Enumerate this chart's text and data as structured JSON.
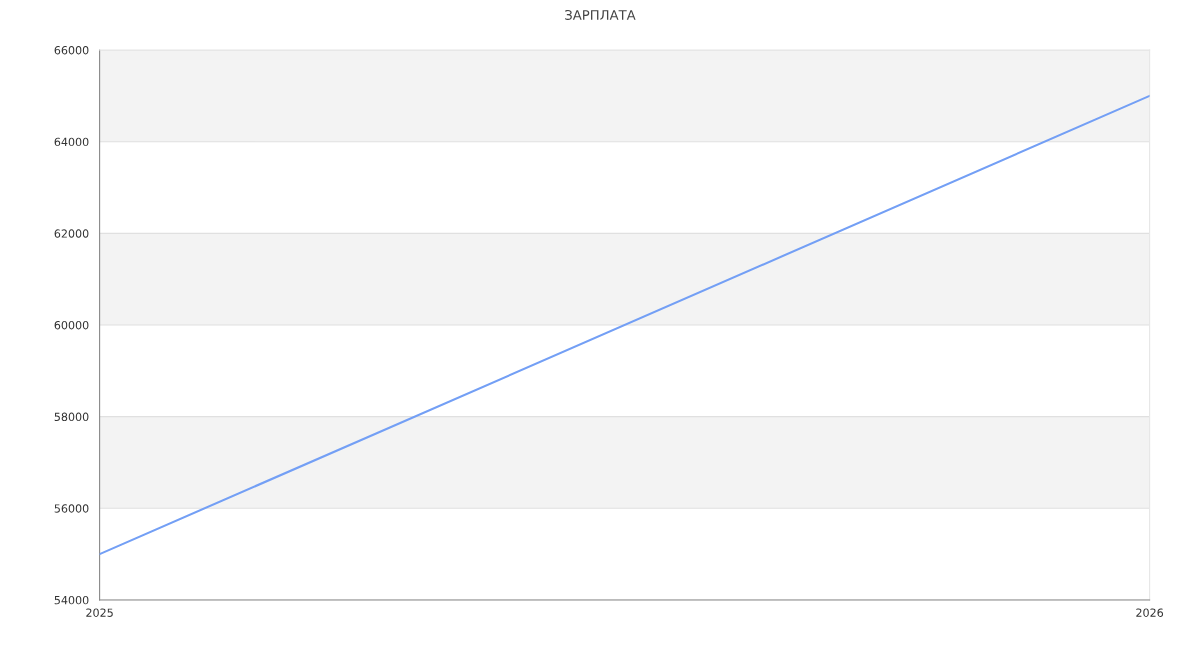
{
  "chart_data": {
    "type": "line",
    "title": "ЗАРПЛАТА",
    "x": [
      2025,
      2026
    ],
    "series": [
      {
        "color": "#739ff5",
        "values": [
          55000,
          65000
        ]
      }
    ],
    "xlim": [
      2025,
      2026
    ],
    "xticks": [
      2025,
      2026
    ],
    "ylim": [
      54000,
      66000
    ],
    "yticks": [
      54000,
      56000,
      58000,
      60000,
      62000,
      64000,
      66000
    ],
    "bands": [
      {
        "axis": "y",
        "from": 56000,
        "to": 58000,
        "color": "#f3f3f3"
      },
      {
        "axis": "y",
        "from": 60000,
        "to": 62000,
        "color": "#f3f3f3"
      },
      {
        "axis": "y",
        "from": 64000,
        "to": 66000,
        "color": "#f3f3f3"
      }
    ],
    "grid": "y",
    "legend": false,
    "marker": "none",
    "line_style": "solid"
  }
}
